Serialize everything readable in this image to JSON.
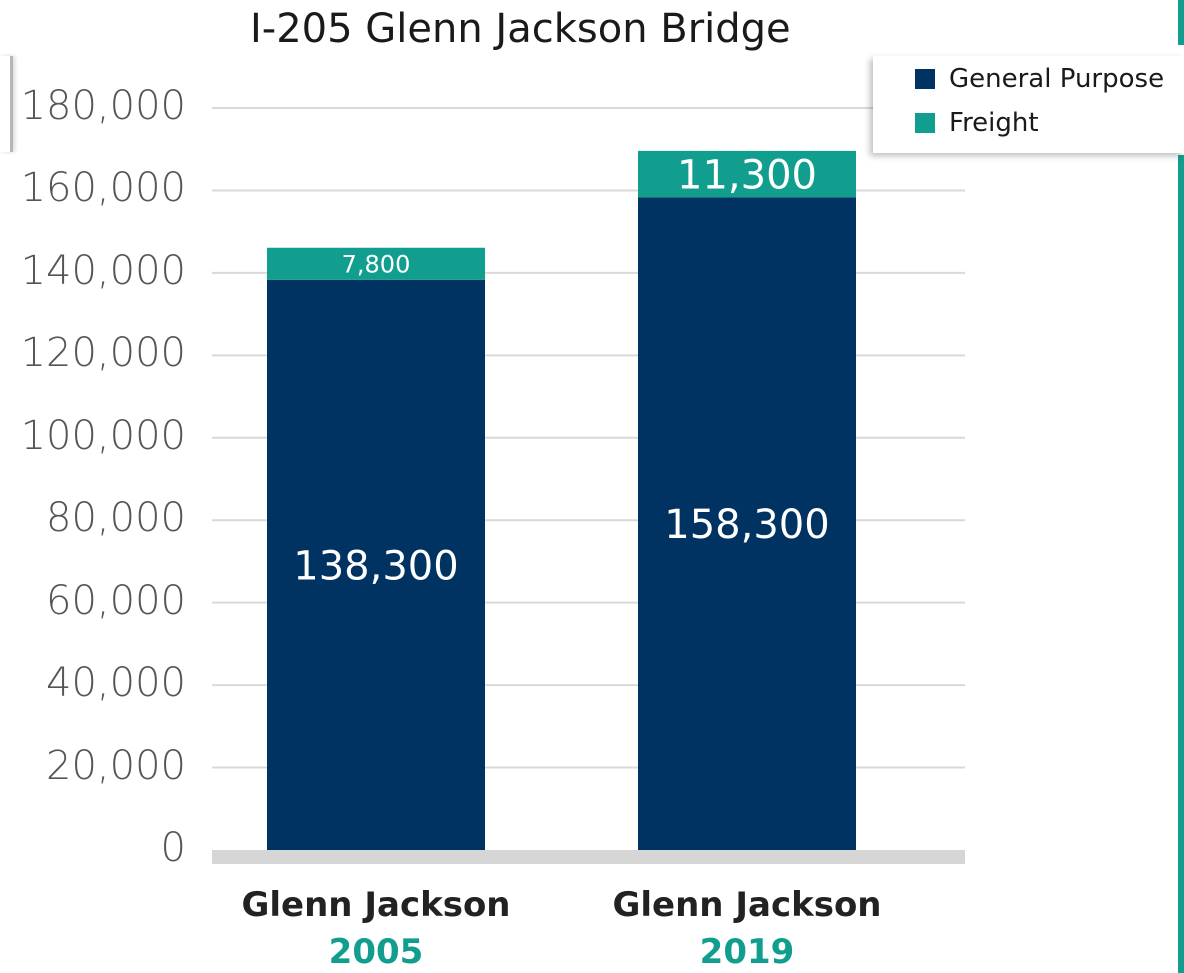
{
  "chart_data": {
    "type": "bar",
    "stacked": true,
    "title": "I-205 Glenn Jackson Bridge",
    "categories": [
      {
        "name": "Glenn Jackson",
        "year": "2005"
      },
      {
        "name": "Glenn Jackson",
        "year": "2019"
      }
    ],
    "series": [
      {
        "name": "General Purpose",
        "color": "#003262",
        "values": [
          138300,
          158300
        ],
        "labels": [
          "138,300",
          "158,300"
        ]
      },
      {
        "name": "Freight",
        "color": "#129e8e",
        "values": [
          7800,
          11300
        ],
        "labels": [
          "7,800",
          "11,300"
        ]
      }
    ],
    "ylim": [
      0,
      180000
    ],
    "yticks": [
      "0",
      "20,000",
      "40,000",
      "60,000",
      "80,000",
      "100,000",
      "120,000",
      "140,000",
      "160,000",
      "180,000"
    ],
    "grid": true,
    "legend_position": "top-right"
  }
}
